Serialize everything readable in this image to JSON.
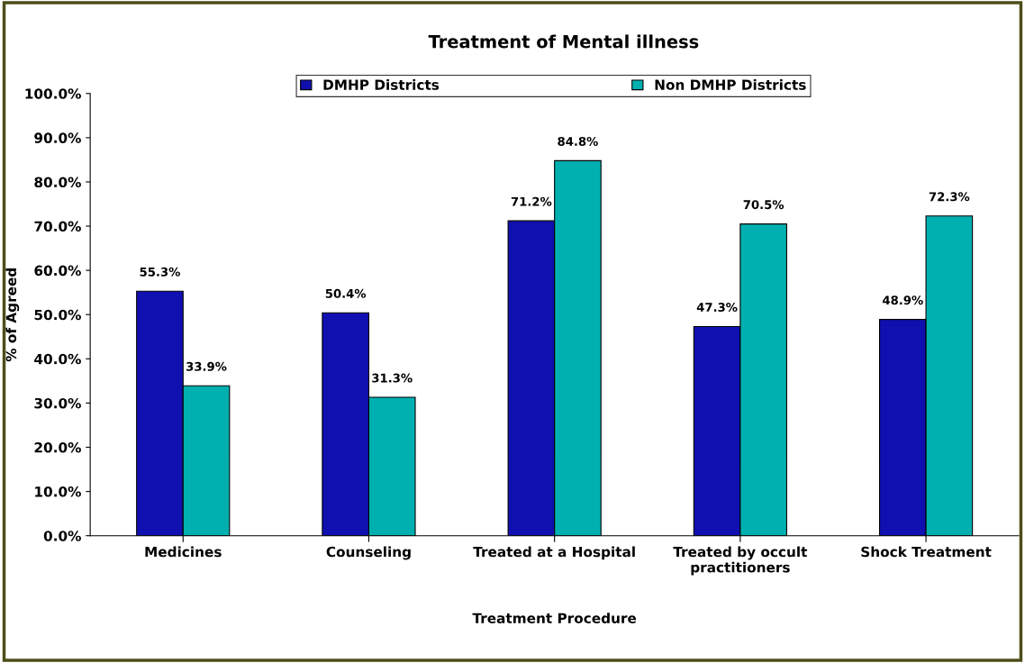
{
  "chart_data": {
    "type": "bar",
    "title": "Treatment of Mental illness",
    "xlabel": "Treatment Procedure",
    "ylabel": "% of Agreed",
    "categories": [
      "Medicines",
      "Counseling",
      "Treated at a Hospital",
      "Treated by occult\npractitioners",
      "Shock Treatment"
    ],
    "series": [
      {
        "name": "DMHP Districts",
        "color": "#1010b0",
        "values": [
          55.3,
          50.4,
          71.2,
          47.3,
          48.9
        ],
        "value_labels": [
          "55.3%",
          "50.4%",
          "71.2%",
          "47.3%",
          "48.9%"
        ]
      },
      {
        "name": "Non DMHP Districts",
        "color": "#00b0b0",
        "values": [
          33.9,
          31.3,
          84.8,
          70.5,
          72.3
        ],
        "value_labels": [
          "33.9%",
          "31.3%",
          "84.8%",
          "70.5%",
          "72.3%"
        ]
      }
    ],
    "ylim": [
      0,
      100
    ],
    "yticks": [
      {
        "value": 0,
        "label": "0.0%"
      },
      {
        "value": 10,
        "label": "10.0%"
      },
      {
        "value": 20,
        "label": "20.0%"
      },
      {
        "value": 30,
        "label": "30.0%"
      },
      {
        "value": 40,
        "label": "40.0%"
      },
      {
        "value": 50,
        "label": "50.0%"
      },
      {
        "value": 60,
        "label": "60.0%"
      },
      {
        "value": 70,
        "label": "70.0%"
      },
      {
        "value": 80,
        "label": "80.0%"
      },
      {
        "value": 90,
        "label": "90.0%"
      },
      {
        "value": 100,
        "label": "100.0%"
      }
    ],
    "grid": false,
    "legend": "top"
  }
}
